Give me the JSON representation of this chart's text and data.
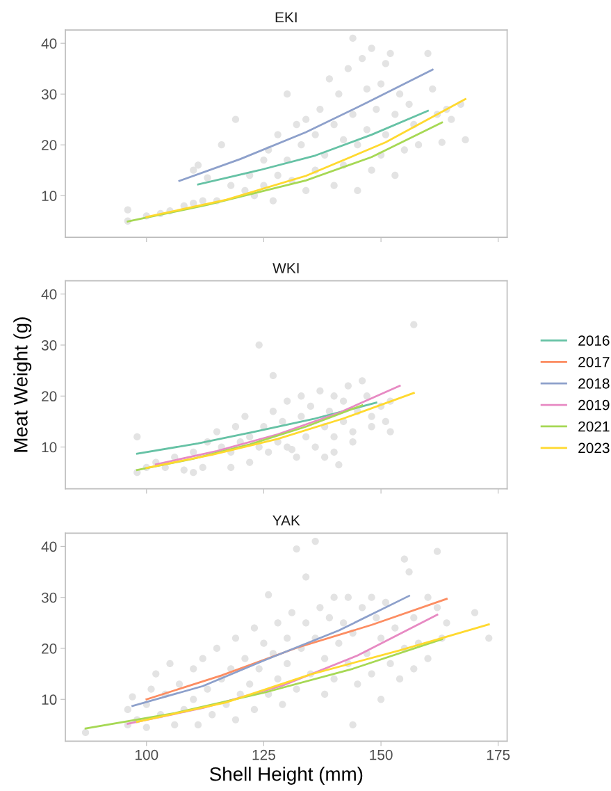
{
  "chart_data": [
    {
      "type": "line",
      "title": "EKI",
      "legend": "right",
      "xlim": [
        82.7,
        176.9
      ],
      "ylim": [
        1.8,
        42.6
      ],
      "xticks": [
        100,
        125,
        150,
        175
      ],
      "yticks": [
        10,
        20,
        30,
        40
      ],
      "tick_labels": "y",
      "grid": false,
      "series": [
        {
          "type": "scatter",
          "marker": "circle",
          "color": "#e3e3e3",
          "x": [
            96,
            96,
            100,
            103,
            105,
            108,
            110,
            112,
            113,
            111,
            110,
            116,
            119,
            122,
            121,
            125,
            125,
            126,
            128,
            128,
            130,
            130,
            132,
            133,
            134,
            134,
            136,
            136,
            137,
            138,
            139,
            140,
            140,
            141,
            142,
            142,
            143,
            144,
            144,
            145,
            145,
            146,
            147,
            147,
            148,
            148,
            149,
            150,
            150,
            151,
            151,
            152,
            153,
            153,
            154,
            155,
            156,
            157,
            158,
            160,
            161,
            162,
            163,
            164,
            165,
            168,
            167,
            123,
            118,
            115,
            127,
            131
          ],
          "values": [
            5,
            7.2,
            6,
            6.5,
            7,
            8,
            8.5,
            9,
            13.5,
            16,
            15,
            20,
            25,
            14,
            11,
            12,
            17,
            19,
            14,
            22,
            30,
            17,
            24,
            20,
            11,
            25,
            15,
            22,
            27,
            18,
            33,
            12,
            24,
            30,
            21,
            16,
            35,
            41,
            26,
            11,
            20,
            37,
            31,
            23,
            15,
            39,
            27,
            18,
            32,
            36,
            22,
            38,
            14,
            26,
            30,
            19,
            28,
            24,
            20,
            38,
            31,
            26,
            20.5,
            27,
            25,
            21,
            28,
            10,
            12,
            9,
            9,
            13
          ]
        },
        {
          "name": "2016",
          "color": "#66c2a5",
          "x": [
            111,
            124,
            136,
            148,
            160
          ],
          "values": [
            12.2,
            15,
            17.9,
            22,
            26.7
          ]
        },
        {
          "name": "2018",
          "color": "#8da0cb",
          "x": [
            107,
            120,
            134,
            147,
            161
          ],
          "values": [
            12.9,
            17.2,
            22.5,
            28.3,
            34.8
          ]
        },
        {
          "name": "2021",
          "color": "#a6d854",
          "x": [
            96,
            113,
            134,
            148,
            163
          ],
          "values": [
            4.9,
            8.2,
            13,
            17.6,
            24.4
          ]
        },
        {
          "name": "2023",
          "color": "#ffd92f",
          "x": [
            100,
            117,
            134,
            151,
            168
          ],
          "values": [
            5.8,
            9.2,
            13.9,
            20.5,
            29
          ]
        }
      ]
    },
    {
      "type": "line",
      "title": "WKI",
      "ylabel": "Meat Weight (g)",
      "legend": "right",
      "xlim": [
        82.7,
        176.9
      ],
      "ylim": [
        1.8,
        42.6
      ],
      "xticks": [
        100,
        125,
        150,
        175
      ],
      "yticks": [
        10,
        20,
        30,
        40
      ],
      "tick_labels": "y",
      "grid": false,
      "series": [
        {
          "type": "scatter",
          "marker": "circle",
          "color": "#e3e3e3",
          "x": [
            98,
            98,
            100,
            102,
            104,
            106,
            108,
            110,
            110,
            112,
            113,
            115,
            116,
            118,
            118,
            119,
            120,
            121,
            122,
            122,
            124,
            124,
            125,
            126,
            127,
            127,
            128,
            129,
            130,
            130,
            131,
            132,
            133,
            133,
            134,
            135,
            136,
            137,
            138,
            138,
            139,
            140,
            140,
            141,
            142,
            142,
            143,
            144,
            145,
            146,
            147,
            148,
            148,
            151,
            152,
            152,
            157,
            150,
            144,
            140
          ],
          "values": [
            5,
            12,
            6,
            7,
            6,
            8,
            5.5,
            5,
            9,
            6,
            11,
            13,
            10,
            6,
            9,
            14,
            11,
            16,
            12,
            7,
            30,
            10,
            14,
            9,
            24,
            17,
            11,
            15,
            10,
            19,
            9.5,
            8,
            16,
            20,
            12,
            18,
            10,
            21,
            14,
            8,
            17,
            20,
            12,
            6.5,
            15,
            19,
            22,
            13,
            17,
            23,
            20,
            16,
            14,
            15,
            13,
            19,
            34,
            18,
            11,
            9
          ]
        },
        {
          "name": "2016",
          "color": "#66c2a5",
          "x": [
            98,
            111,
            123,
            136,
            149
          ],
          "values": [
            8.7,
            10.7,
            13,
            15.6,
            18.7
          ]
        },
        {
          "name": "2019",
          "color": "#e78ac3",
          "x": [
            102,
            115,
            128,
            141,
            154
          ],
          "values": [
            6.6,
            9.2,
            12.5,
            16.7,
            22
          ]
        },
        {
          "name": "2021",
          "color": "#a6d854",
          "x": [
            98,
            110,
            122,
            134,
            146
          ],
          "values": [
            5.5,
            7.7,
            10.5,
            14,
            18.2
          ]
        },
        {
          "name": "2023",
          "color": "#ffd92f",
          "x": [
            100,
            114,
            128,
            142,
            157
          ],
          "values": [
            5.9,
            8.5,
            11.6,
            15.6,
            20.6
          ]
        }
      ]
    },
    {
      "type": "line",
      "title": "YAK",
      "legend": "right",
      "xlabel": "Shell Height (mm)",
      "xlim": [
        82.7,
        176.9
      ],
      "ylim": [
        1.8,
        42.6
      ],
      "xticks": [
        100,
        125,
        150,
        175
      ],
      "yticks": [
        10,
        20,
        30,
        40
      ],
      "grid": false,
      "series": [
        {
          "type": "scatter",
          "marker": "circle",
          "color": "#e3e3e3",
          "x": [
            87,
            96,
            96,
            97,
            98,
            100,
            100,
            101,
            102,
            103,
            104,
            105,
            106,
            107,
            108,
            110,
            110,
            111,
            112,
            113,
            114,
            115,
            116,
            117,
            118,
            119,
            119,
            120,
            121,
            122,
            123,
            123,
            124,
            125,
            126,
            126,
            127,
            128,
            128,
            129,
            130,
            130,
            131,
            132,
            132,
            133,
            134,
            134,
            135,
            136,
            136,
            137,
            138,
            138,
            139,
            140,
            140,
            141,
            142,
            143,
            143,
            144,
            144,
            145,
            146,
            147,
            148,
            148,
            149,
            150,
            150,
            151,
            152,
            153,
            154,
            155,
            155,
            156,
            157,
            157,
            158,
            160,
            160,
            162,
            162,
            163,
            164,
            170,
            173
          ],
          "values": [
            3.5,
            5,
            8,
            10.5,
            6,
            4.5,
            9,
            12,
            15,
            7,
            11,
            17,
            5,
            13,
            8,
            16,
            10,
            5,
            18,
            12,
            7,
            20,
            14,
            9,
            16,
            22,
            6,
            11,
            18,
            13,
            24,
            8,
            16,
            21,
            30.5,
            11,
            19,
            14,
            25,
            9,
            22,
            17,
            27,
            39.5,
            12,
            20,
            34,
            25,
            15,
            41,
            22,
            28,
            18,
            11,
            26,
            30,
            14,
            21,
            25,
            17,
            30,
            5,
            23,
            13,
            28,
            19,
            30,
            15,
            26,
            22,
            10,
            29,
            17,
            24,
            14,
            37.5,
            20,
            35,
            26,
            16,
            21,
            30,
            18,
            39,
            28,
            22,
            25,
            27,
            22
          ]
        },
        {
          "name": "2017",
          "color": "#fc8d62",
          "x": [
            100,
            116,
            132,
            148,
            164
          ],
          "values": [
            10,
            14.7,
            20.1,
            24.6,
            29.7
          ]
        },
        {
          "name": "2018",
          "color": "#8da0cb",
          "x": [
            97,
            112,
            125,
            141,
            156
          ],
          "values": [
            8.7,
            12.6,
            17.6,
            23.5,
            30.3
          ]
        },
        {
          "name": "2019",
          "color": "#e78ac3",
          "x": [
            96,
            112,
            129,
            145,
            162
          ],
          "values": [
            5.2,
            8.3,
            12.7,
            18.6,
            26.6
          ]
        },
        {
          "name": "2021",
          "color": "#a6d854",
          "x": [
            87,
            106,
            125,
            144,
            163
          ],
          "values": [
            4.3,
            7.3,
            11.3,
            16,
            21.8
          ]
        },
        {
          "name": "2023",
          "color": "#ffd92f",
          "x": [
            98,
            117,
            135,
            154,
            173
          ],
          "values": [
            5.6,
            9.4,
            14.9,
            19.6,
            24.7
          ]
        }
      ]
    }
  ]
}
